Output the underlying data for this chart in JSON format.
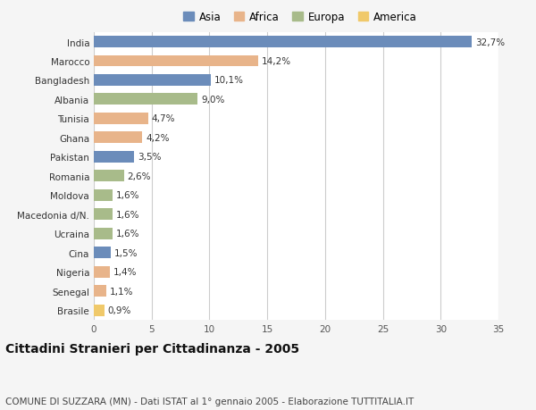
{
  "countries": [
    "India",
    "Marocco",
    "Bangladesh",
    "Albania",
    "Tunisia",
    "Ghana",
    "Pakistan",
    "Romania",
    "Moldova",
    "Macedonia d/N.",
    "Ucraina",
    "Cina",
    "Nigeria",
    "Senegal",
    "Brasile"
  ],
  "values": [
    32.7,
    14.2,
    10.1,
    9.0,
    4.7,
    4.2,
    3.5,
    2.6,
    1.6,
    1.6,
    1.6,
    1.5,
    1.4,
    1.1,
    0.9
  ],
  "labels": [
    "32,7%",
    "14,2%",
    "10,1%",
    "9,0%",
    "4,7%",
    "4,2%",
    "3,5%",
    "2,6%",
    "1,6%",
    "1,6%",
    "1,6%",
    "1,5%",
    "1,4%",
    "1,1%",
    "0,9%"
  ],
  "colors": [
    "#6b8cba",
    "#e8b48a",
    "#6b8cba",
    "#a8bb8a",
    "#e8b48a",
    "#e8b48a",
    "#6b8cba",
    "#a8bb8a",
    "#a8bb8a",
    "#a8bb8a",
    "#a8bb8a",
    "#6b8cba",
    "#e8b48a",
    "#e8b48a",
    "#f0c96a"
  ],
  "legend_labels": [
    "Asia",
    "Africa",
    "Europa",
    "America"
  ],
  "legend_colors": [
    "#6b8cba",
    "#e8b48a",
    "#a8bb8a",
    "#f0c96a"
  ],
  "title": "Cittadini Stranieri per Cittadinanza - 2005",
  "subtitle": "COMUNE DI SUZZARA (MN) - Dati ISTAT al 1° gennaio 2005 - Elaborazione TUTTITALIA.IT",
  "xlim": [
    0,
    35
  ],
  "xticks": [
    0,
    5,
    10,
    15,
    20,
    25,
    30,
    35
  ],
  "background_color": "#f5f5f5",
  "plot_background": "#ffffff",
  "grid_color": "#cccccc",
  "bar_height": 0.6,
  "label_fontsize": 7.5,
  "title_fontsize": 10,
  "subtitle_fontsize": 7.5,
  "tick_fontsize": 7.5,
  "legend_fontsize": 8.5
}
